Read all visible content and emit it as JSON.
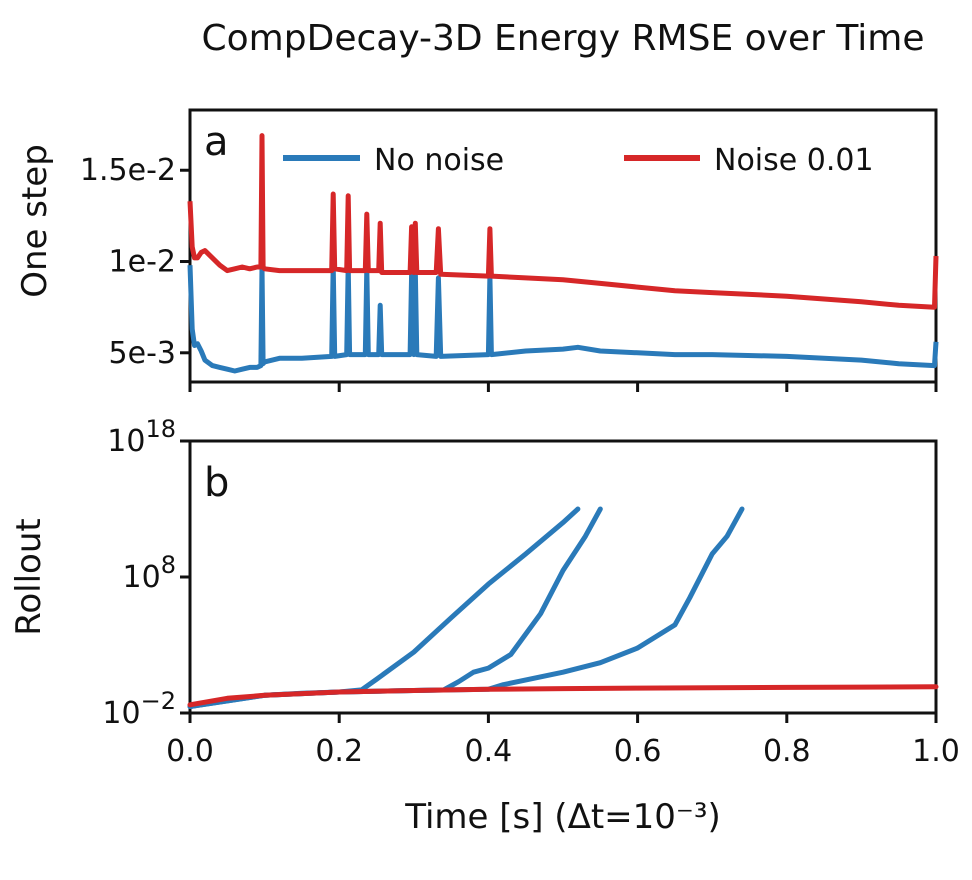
{
  "title": "CompDecay-3D Energy RMSE over Time",
  "xlabel": "Time [s] (Δt=10⁻³)",
  "colors": {
    "no_noise": "#2a7ab9",
    "noise": "#d62728"
  },
  "chart_data": [
    {
      "panel": "a",
      "type": "line",
      "ylabel": "One step",
      "yscale": "linear",
      "xlim": [
        0.0,
        1.0
      ],
      "ylim": [
        0.0034,
        0.0183
      ],
      "yticks": [
        0.005,
        0.01,
        0.015
      ],
      "ytick_labels": [
        "5e-3",
        "1e-2",
        "1.5e-2"
      ],
      "legend": "top",
      "series": [
        {
          "name": "No noise",
          "color": "#2a7ab9",
          "x": [
            0.0,
            0.003,
            0.006,
            0.01,
            0.015,
            0.02,
            0.03,
            0.04,
            0.05,
            0.06,
            0.07,
            0.08,
            0.09,
            0.095,
            0.0965,
            0.098,
            0.1,
            0.12,
            0.15,
            0.19,
            0.192,
            0.194,
            0.21,
            0.212,
            0.214,
            0.235,
            0.237,
            0.239,
            0.253,
            0.255,
            0.257,
            0.29,
            0.295,
            0.297,
            0.3,
            0.302,
            0.304,
            0.33,
            0.333,
            0.336,
            0.4,
            0.402,
            0.404,
            0.45,
            0.5,
            0.52,
            0.55,
            0.6,
            0.65,
            0.7,
            0.8,
            0.9,
            0.95,
            0.998,
            1.0
          ],
          "values": [
            0.0098,
            0.0063,
            0.0054,
            0.0055,
            0.0051,
            0.0046,
            0.0043,
            0.0042,
            0.0041,
            0.004,
            0.0041,
            0.0042,
            0.0042,
            0.0043,
            0.0097,
            0.0044,
            0.0045,
            0.0047,
            0.0047,
            0.0048,
            0.0098,
            0.0048,
            0.0049,
            0.0098,
            0.0049,
            0.0049,
            0.0096,
            0.0049,
            0.0049,
            0.0076,
            0.0049,
            0.0049,
            0.0049,
            0.0093,
            0.0049,
            0.0095,
            0.0049,
            0.0048,
            0.0091,
            0.0048,
            0.0049,
            0.0092,
            0.0049,
            0.0051,
            0.0052,
            0.0053,
            0.0051,
            0.005,
            0.0049,
            0.0049,
            0.0048,
            0.0046,
            0.0044,
            0.0043,
            0.0056
          ]
        },
        {
          "name": "Noise 0.01",
          "color": "#d62728",
          "x": [
            0.0,
            0.003,
            0.006,
            0.01,
            0.015,
            0.02,
            0.03,
            0.04,
            0.05,
            0.06,
            0.07,
            0.08,
            0.09,
            0.095,
            0.0965,
            0.098,
            0.1,
            0.12,
            0.15,
            0.19,
            0.192,
            0.194,
            0.21,
            0.212,
            0.214,
            0.235,
            0.237,
            0.239,
            0.253,
            0.255,
            0.257,
            0.29,
            0.295,
            0.297,
            0.3,
            0.302,
            0.304,
            0.33,
            0.333,
            0.336,
            0.4,
            0.402,
            0.404,
            0.45,
            0.5,
            0.55,
            0.6,
            0.65,
            0.7,
            0.8,
            0.9,
            0.95,
            0.998,
            1.0
          ],
          "values": [
            0.0133,
            0.0108,
            0.0102,
            0.0102,
            0.0105,
            0.0106,
            0.0102,
            0.0098,
            0.0095,
            0.0096,
            0.0097,
            0.0096,
            0.0097,
            0.0097,
            0.0169,
            0.0097,
            0.0096,
            0.0095,
            0.0095,
            0.0095,
            0.0137,
            0.0096,
            0.0095,
            0.0136,
            0.0095,
            0.0095,
            0.0126,
            0.0095,
            0.0095,
            0.0121,
            0.0094,
            0.0094,
            0.0094,
            0.0119,
            0.0094,
            0.0121,
            0.0094,
            0.0094,
            0.0118,
            0.0093,
            0.0092,
            0.0118,
            0.0092,
            0.0091,
            0.009,
            0.0088,
            0.0086,
            0.0084,
            0.0083,
            0.0081,
            0.0078,
            0.0076,
            0.0075,
            0.0103
          ]
        }
      ]
    },
    {
      "panel": "b",
      "type": "line",
      "ylabel": "Rollout",
      "yscale": "log",
      "xlim": [
        0.0,
        1.0
      ],
      "ylim": [
        0.01,
        1e+18
      ],
      "yticks": [
        0.01,
        100000000.0,
        1e+18
      ],
      "ytick_labels": [
        [
          "10",
          "−2"
        ],
        [
          "10",
          "8"
        ],
        [
          "10",
          "18"
        ]
      ],
      "xticks": [
        0.0,
        0.2,
        0.4,
        0.6,
        0.8,
        1.0
      ],
      "xtick_labels": [
        "0.0",
        "0.2",
        "0.4",
        "0.6",
        "0.8",
        "1.0"
      ],
      "series": [
        {
          "color": "#2a7ab9",
          "x": [
            0.0,
            0.05,
            0.1,
            0.15,
            0.2,
            0.23,
            0.25,
            0.3,
            0.35,
            0.4,
            0.45,
            0.5,
            0.52
          ],
          "values": [
            0.03,
            0.1,
            0.2,
            0.28,
            0.35,
            0.5,
            3,
            300,
            100000.0,
            30000000.0,
            5000000000.0,
            1000000000000.0,
            10000000000000.0
          ]
        },
        {
          "color": "#2a7ab9",
          "x": [
            0.0,
            0.1,
            0.2,
            0.3,
            0.34,
            0.36,
            0.38,
            0.4,
            0.43,
            0.47,
            0.5,
            0.53,
            0.55
          ],
          "values": [
            0.03,
            0.2,
            0.35,
            0.45,
            0.5,
            2,
            10,
            20,
            200,
            200000.0,
            300000000.0,
            100000000000.0,
            10000000000000.0
          ]
        },
        {
          "color": "#2a7ab9",
          "x": [
            0.0,
            0.1,
            0.2,
            0.3,
            0.4,
            0.42,
            0.5,
            0.55,
            0.6,
            0.65,
            0.67,
            0.7,
            0.72,
            0.74
          ],
          "values": [
            0.03,
            0.2,
            0.35,
            0.45,
            0.55,
            1.2,
            10,
            50,
            600,
            30000.0,
            3000000.0,
            5000000000.0,
            100000000000.0,
            10000000000000.0
          ]
        },
        {
          "color": "#d62728",
          "x": [
            0.0,
            0.05,
            0.1,
            0.2,
            0.3,
            0.4,
            0.5,
            0.6,
            0.7,
            0.8,
            0.9,
            1.0
          ],
          "values": [
            0.04,
            0.12,
            0.2,
            0.35,
            0.45,
            0.55,
            0.62,
            0.68,
            0.72,
            0.76,
            0.8,
            0.85
          ]
        }
      ]
    }
  ]
}
